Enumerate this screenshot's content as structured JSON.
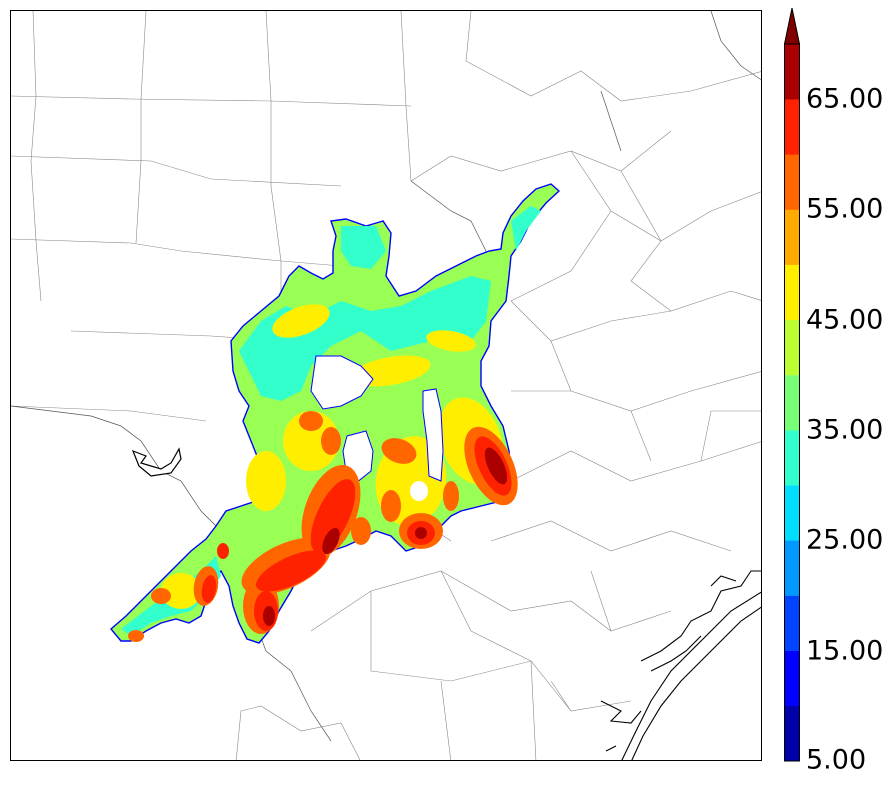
{
  "colorbar": {
    "ticks": [
      {
        "value": 5,
        "label": "5.00"
      },
      {
        "value": 15,
        "label": "15.00"
      },
      {
        "value": 25,
        "label": "25.00"
      },
      {
        "value": 35,
        "label": "35.00"
      },
      {
        "value": 45,
        "label": "45.00"
      },
      {
        "value": 55,
        "label": "55.00"
      },
      {
        "value": 65,
        "label": "65.00"
      }
    ],
    "range": [
      5,
      70
    ],
    "extend": "max",
    "levels": [
      {
        "from": 5,
        "to": 10,
        "color": "#0000aa"
      },
      {
        "from": 10,
        "to": 15,
        "color": "#0000ff"
      },
      {
        "from": 15,
        "to": 20,
        "color": "#0044ff"
      },
      {
        "from": 20,
        "to": 25,
        "color": "#0099ff"
      },
      {
        "from": 25,
        "to": 30,
        "color": "#00ddff"
      },
      {
        "from": 30,
        "to": 35,
        "color": "#33ffcc"
      },
      {
        "from": 35,
        "to": 40,
        "color": "#77ff77"
      },
      {
        "from": 40,
        "to": 45,
        "color": "#bbff33"
      },
      {
        "from": 45,
        "to": 50,
        "color": "#ffee00"
      },
      {
        "from": 50,
        "to": 55,
        "color": "#ffaa00"
      },
      {
        "from": 55,
        "to": 60,
        "color": "#ff6600"
      },
      {
        "from": 60,
        "to": 65,
        "color": "#ff2200"
      },
      {
        "from": 65,
        "to": 70,
        "color": "#aa0000"
      },
      {
        "from": 70,
        "to": 75,
        "color": "#800000"
      }
    ]
  },
  "map": {
    "region": "south-central-texas-county-map",
    "field_colors": {
      "outline": "#0000ff",
      "base": "#99ff55",
      "mid": "#33ffcc",
      "warm": "#ffee00",
      "hot": "#ff6600",
      "hotter": "#ff2200",
      "core": "#aa0000"
    }
  }
}
